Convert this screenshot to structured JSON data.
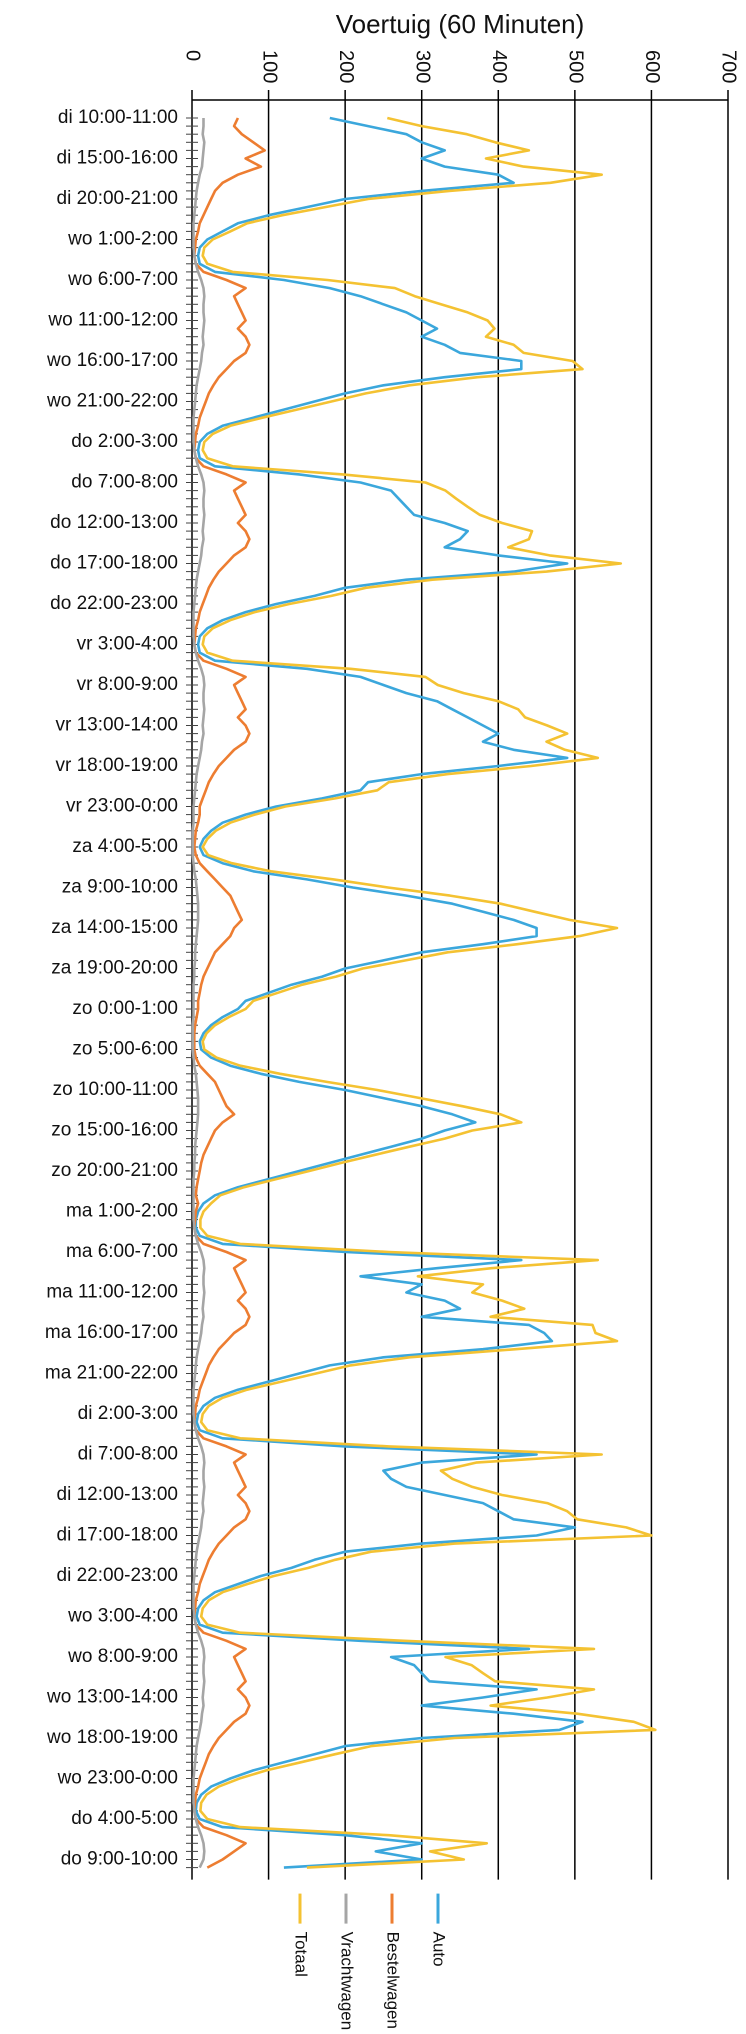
{
  "chart_data": {
    "type": "line",
    "orientation": "horizontal",
    "title": "Voertuig (60 Minuten)",
    "categories": [
      "di 10:00-11:00",
      null,
      null,
      null,
      null,
      "di 15:00-16:00",
      null,
      null,
      null,
      null,
      "di 20:00-21:00",
      null,
      null,
      null,
      null,
      "wo 1:00-2:00",
      null,
      null,
      null,
      null,
      "wo 6:00-7:00",
      null,
      null,
      null,
      null,
      "wo 11:00-12:00",
      null,
      null,
      null,
      null,
      "wo 16:00-17:00",
      null,
      null,
      null,
      null,
      "wo 21:00-22:00",
      null,
      null,
      null,
      null,
      "do 2:00-3:00",
      null,
      null,
      null,
      null,
      "do 7:00-8:00",
      null,
      null,
      null,
      null,
      "do 12:00-13:00",
      null,
      null,
      null,
      null,
      "do 17:00-18:00",
      null,
      null,
      null,
      null,
      "do 22:00-23:00",
      null,
      null,
      null,
      null,
      "vr 3:00-4:00",
      null,
      null,
      null,
      null,
      "vr 8:00-9:00",
      null,
      null,
      null,
      null,
      "vr 13:00-14:00",
      null,
      null,
      null,
      null,
      "vr 18:00-19:00",
      null,
      null,
      null,
      null,
      "vr 23:00-0:00",
      null,
      null,
      null,
      null,
      "za 4:00-5:00",
      null,
      null,
      null,
      null,
      "za 9:00-10:00",
      null,
      null,
      null,
      null,
      "za 14:00-15:00",
      null,
      null,
      null,
      null,
      "za 19:00-20:00",
      null,
      null,
      null,
      null,
      "zo 0:00-1:00",
      null,
      null,
      null,
      null,
      "zo 5:00-6:00",
      null,
      null,
      null,
      null,
      "zo 10:00-11:00",
      null,
      null,
      null,
      null,
      "zo 15:00-16:00",
      null,
      null,
      null,
      null,
      "zo 20:00-21:00",
      null,
      null,
      null,
      null,
      "ma 1:00-2:00",
      null,
      null,
      null,
      null,
      "ma 6:00-7:00",
      null,
      null,
      null,
      null,
      "ma 11:00-12:00",
      null,
      null,
      null,
      null,
      "ma 16:00-17:00",
      null,
      null,
      null,
      null,
      "ma 21:00-22:00",
      null,
      null,
      null,
      null,
      "di 2:00-3:00",
      null,
      null,
      null,
      null,
      "di 7:00-8:00",
      null,
      null,
      null,
      null,
      "di 12:00-13:00",
      null,
      null,
      null,
      null,
      "di 17:00-18:00",
      null,
      null,
      null,
      null,
      "di 22:00-23:00",
      null,
      null,
      null,
      null,
      "wo 3:00-4:00",
      null,
      null,
      null,
      null,
      "wo 8:00-9:00",
      null,
      null,
      null,
      null,
      "wo 13:00-14:00",
      null,
      null,
      null,
      null,
      "wo 18:00-19:00",
      null,
      null,
      null,
      null,
      "wo 23:00-0:00",
      null,
      null,
      null,
      null,
      "do 4:00-5:00",
      null,
      null,
      null,
      null,
      "do 9:00-10:00",
      null
    ],
    "series": [
      {
        "name": "Auto",
        "color": "#3ba7dc",
        "values": [
          180,
          230,
          280,
          300,
          330,
          300,
          330,
          400,
          420,
          300,
          200,
          150,
          100,
          60,
          40,
          20,
          10,
          8,
          10,
          30,
          120,
          180,
          220,
          250,
          280,
          300,
          320,
          300,
          330,
          350,
          430,
          430,
          330,
          250,
          200,
          160,
          120,
          80,
          40,
          20,
          10,
          8,
          10,
          30,
          140,
          220,
          260,
          270,
          280,
          290,
          330,
          360,
          350,
          330,
          400,
          490,
          420,
          280,
          200,
          160,
          110,
          70,
          40,
          20,
          10,
          8,
          10,
          30,
          150,
          220,
          250,
          280,
          320,
          340,
          360,
          380,
          400,
          380,
          420,
          490,
          400,
          300,
          230,
          220,
          170,
          110,
          70,
          40,
          25,
          15,
          10,
          15,
          40,
          80,
          150,
          210,
          280,
          340,
          380,
          420,
          450,
          450,
          380,
          300,
          250,
          200,
          170,
          130,
          100,
          70,
          60,
          40,
          25,
          15,
          10,
          12,
          25,
          50,
          90,
          140,
          200,
          250,
          300,
          340,
          370,
          330,
          300,
          260,
          220,
          180,
          140,
          100,
          60,
          30,
          15,
          8,
          5,
          5,
          10,
          40,
          200,
          430,
          320,
          220,
          300,
          280,
          330,
          350,
          300,
          440,
          460,
          470,
          380,
          250,
          180,
          140,
          100,
          60,
          30,
          15,
          8,
          6,
          10,
          40,
          200,
          450,
          300,
          250,
          260,
          280,
          330,
          380,
          400,
          420,
          500,
          450,
          300,
          200,
          160,
          130,
          90,
          60,
          30,
          15,
          8,
          6,
          10,
          40,
          220,
          440,
          260,
          290,
          300,
          310,
          450,
          380,
          300,
          420,
          510,
          480,
          300,
          200,
          160,
          120,
          80,
          50,
          25,
          12,
          6,
          5,
          10,
          40,
          200,
          300,
          240,
          300,
          120
        ]
      },
      {
        "name": "Bestelwagen",
        "color": "#ed7d31",
        "values": [
          60,
          55,
          65,
          80,
          95,
          70,
          90,
          60,
          40,
          30,
          25,
          20,
          15,
          10,
          8,
          5,
          4,
          3,
          5,
          15,
          45,
          70,
          55,
          60,
          65,
          70,
          60,
          70,
          75,
          70,
          55,
          45,
          35,
          28,
          22,
          18,
          14,
          10,
          8,
          5,
          4,
          3,
          5,
          15,
          45,
          70,
          55,
          60,
          65,
          70,
          60,
          70,
          75,
          70,
          55,
          45,
          35,
          28,
          22,
          18,
          14,
          10,
          8,
          5,
          4,
          3,
          5,
          15,
          45,
          70,
          55,
          60,
          65,
          70,
          60,
          70,
          75,
          70,
          55,
          45,
          35,
          28,
          22,
          18,
          14,
          10,
          10,
          8,
          5,
          4,
          3,
          5,
          10,
          20,
          30,
          40,
          50,
          55,
          60,
          65,
          55,
          50,
          40,
          30,
          25,
          20,
          15,
          12,
          10,
          8,
          8,
          6,
          4,
          3,
          3,
          3,
          5,
          10,
          20,
          30,
          35,
          40,
          45,
          55,
          40,
          30,
          25,
          20,
          15,
          12,
          10,
          8,
          6,
          5,
          8,
          5,
          4,
          3,
          5,
          15,
          45,
          70,
          55,
          60,
          65,
          70,
          60,
          70,
          75,
          70,
          55,
          45,
          35,
          28,
          22,
          18,
          14,
          10,
          8,
          5,
          4,
          3,
          5,
          15,
          45,
          70,
          55,
          60,
          65,
          70,
          60,
          70,
          75,
          70,
          55,
          45,
          35,
          28,
          22,
          18,
          14,
          10,
          8,
          5,
          4,
          3,
          5,
          15,
          45,
          70,
          55,
          60,
          65,
          70,
          60,
          70,
          75,
          70,
          55,
          45,
          35,
          28,
          22,
          18,
          14,
          10,
          8,
          5,
          4,
          3,
          5,
          15,
          45,
          70,
          55,
          40,
          20
        ]
      },
      {
        "name": "Vrachtwagen",
        "color": "#a5a5a5",
        "values": [
          15,
          15,
          14,
          16,
          15,
          14,
          13,
          10,
          8,
          6,
          5,
          4,
          3,
          2,
          2,
          2,
          2,
          3,
          5,
          8,
          12,
          15,
          16,
          15,
          15,
          16,
          15,
          14,
          15,
          13,
          12,
          10,
          8,
          6,
          5,
          4,
          3,
          2,
          2,
          2,
          2,
          3,
          5,
          8,
          12,
          15,
          16,
          15,
          15,
          16,
          15,
          14,
          15,
          13,
          12,
          10,
          8,
          6,
          5,
          4,
          3,
          2,
          2,
          2,
          2,
          3,
          5,
          8,
          12,
          15,
          16,
          15,
          15,
          16,
          15,
          14,
          15,
          13,
          12,
          10,
          8,
          6,
          5,
          4,
          3,
          2,
          2,
          2,
          1,
          1,
          1,
          1,
          2,
          3,
          5,
          6,
          7,
          8,
          8,
          8,
          7,
          6,
          5,
          4,
          4,
          3,
          3,
          2,
          2,
          2,
          2,
          2,
          1,
          1,
          1,
          1,
          2,
          3,
          5,
          6,
          7,
          8,
          8,
          8,
          7,
          6,
          5,
          4,
          4,
          3,
          3,
          2,
          2,
          2,
          2,
          2,
          2,
          3,
          5,
          8,
          12,
          15,
          16,
          15,
          15,
          16,
          15,
          14,
          15,
          13,
          12,
          10,
          8,
          6,
          5,
          4,
          3,
          2,
          2,
          2,
          2,
          3,
          5,
          8,
          12,
          15,
          16,
          15,
          15,
          16,
          15,
          14,
          15,
          13,
          12,
          10,
          8,
          6,
          5,
          4,
          3,
          2,
          2,
          2,
          2,
          3,
          5,
          8,
          12,
          15,
          16,
          15,
          15,
          16,
          15,
          14,
          15,
          13,
          12,
          10,
          8,
          6,
          5,
          4,
          3,
          2,
          2,
          2,
          2,
          3,
          5,
          8,
          12,
          15,
          16,
          15,
          10
        ]
      },
      {
        "name": "Totaal",
        "color": "#f4c232",
        "values": [
          255,
          300,
          359,
          396,
          440,
          384,
          433,
          535,
          468,
          336,
          230,
          174,
          118,
          72,
          50,
          27,
          16,
          14,
          20,
          53,
          177,
          265,
          291,
          325,
          360,
          386,
          395,
          384,
          420,
          433,
          497,
          510,
          373,
          284,
          227,
          182,
          137,
          92,
          50,
          27,
          16,
          14,
          20,
          53,
          197,
          305,
          331,
          345,
          360,
          376,
          405,
          444,
          440,
          413,
          467,
          560,
          463,
          314,
          227,
          182,
          127,
          82,
          50,
          27,
          16,
          14,
          20,
          53,
          207,
          305,
          321,
          355,
          400,
          426,
          435,
          464,
          490,
          463,
          487,
          530,
          443,
          334,
          257,
          242,
          187,
          122,
          82,
          50,
          31,
          20,
          14,
          21,
          52,
          103,
          185,
          256,
          337,
          403,
          448,
          493,
          555,
          506,
          425,
          334,
          279,
          223,
          188,
          144,
          112,
          80,
          70,
          48,
          30,
          19,
          14,
          16,
          32,
          63,
          115,
          176,
          242,
          298,
          353,
          403,
          430,
          366,
          330,
          284,
          239,
          195,
          153,
          110,
          68,
          37,
          25,
          15,
          11,
          11,
          20,
          63,
          257,
          530,
          391,
          295,
          380,
          366,
          405,
          434,
          390,
          523,
          527,
          555,
          423,
          284,
          207,
          162,
          117,
          72,
          40,
          22,
          14,
          12,
          20,
          63,
          257,
          535,
          371,
          325,
          340,
          366,
          405,
          464,
          490,
          503,
          567,
          600,
          343,
          234,
          187,
          152,
          107,
          72,
          40,
          22,
          14,
          12,
          20,
          63,
          277,
          525,
          331,
          365,
          380,
          396,
          525,
          464,
          390,
          503,
          577,
          605,
          343,
          234,
          187,
          142,
          97,
          62,
          35,
          19,
          12,
          11,
          20,
          63,
          257,
          385,
          311,
          355,
          150
        ]
      }
    ],
    "xlim": [
      0,
      700
    ],
    "xticks": [
      0,
      100,
      200,
      300,
      400,
      500,
      600,
      700
    ],
    "grid": true,
    "legend": "bottom"
  }
}
